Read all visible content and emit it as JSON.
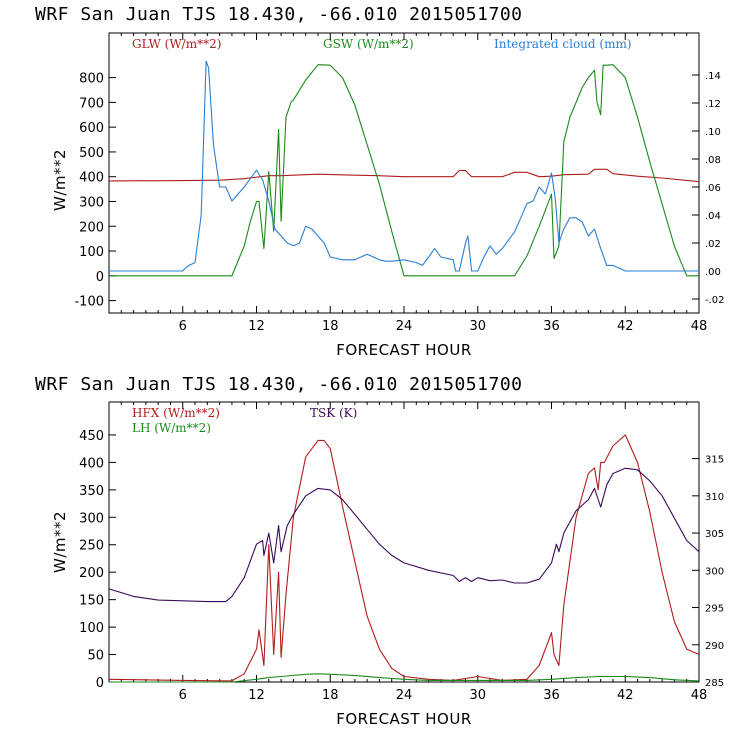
{
  "chart_data": [
    {
      "type": "line",
      "title": "WRF  San Juan TJS  18.430, -66.010  2015051700",
      "xlabel": "FORECAST HOUR",
      "ylabel": "W/m**2",
      "xlim": [
        0,
        48
      ],
      "ylim": [
        -150,
        980
      ],
      "y2lim": [
        -0.03,
        0.17
      ],
      "xticks": [
        6,
        12,
        18,
        24,
        30,
        36,
        42,
        48
      ],
      "yticks": [
        -100,
        0,
        100,
        200,
        300,
        400,
        500,
        600,
        700,
        800
      ],
      "y2ticks": [
        -0.02,
        0.0,
        0.02,
        0.04,
        0.06,
        0.08,
        0.1,
        0.12,
        0.14
      ],
      "y2ticklabels": [
        "-.02",
        ".00",
        ".02",
        ".04",
        ".06",
        ".08",
        ".10",
        ".12",
        ".14"
      ],
      "series": [
        {
          "name": "GLW (W/m**2)",
          "color": "#b11c1c",
          "axis": "left",
          "x": [
            0,
            5,
            9,
            11,
            12,
            13,
            14,
            17,
            20,
            22,
            24,
            26,
            28,
            28.5,
            29,
            29.5,
            30,
            32,
            33,
            34,
            35,
            36,
            37,
            39,
            39.5,
            40.5,
            41,
            43,
            45,
            47,
            48
          ],
          "y": [
            383,
            384,
            386,
            392,
            398,
            404,
            404,
            410,
            406,
            404,
            400,
            400,
            400,
            425,
            425,
            400,
            400,
            400,
            418,
            418,
            400,
            402,
            408,
            410,
            430,
            430,
            412,
            402,
            395,
            385,
            380
          ]
        },
        {
          "name": "GSW (W/m**2)",
          "color": "#1b8a1b",
          "axis": "left",
          "x": [
            0,
            9,
            10,
            11,
            11.5,
            12,
            12.2,
            12.6,
            13,
            13.4,
            13.8,
            14,
            14.4,
            14.8,
            15,
            16,
            17,
            18,
            19,
            20,
            21,
            22,
            23,
            24,
            26,
            28,
            30,
            32,
            33,
            34,
            35,
            36,
            36.2,
            36.6,
            37,
            37.5,
            38,
            38.5,
            39,
            39.5,
            39.7,
            40,
            40.2,
            40.5,
            41,
            42,
            43,
            44,
            45,
            46,
            47,
            48
          ],
          "y": [
            0,
            0,
            0,
            120,
            220,
            300,
            300,
            110,
            420,
            180,
            590,
            220,
            640,
            700,
            710,
            790,
            852,
            850,
            800,
            690,
            530,
            370,
            180,
            0,
            0,
            0,
            0,
            0,
            0,
            80,
            200,
            330,
            70,
            120,
            540,
            640,
            700,
            760,
            800,
            830,
            700,
            650,
            850,
            850,
            852,
            800,
            640,
            460,
            290,
            120,
            0,
            0
          ]
        },
        {
          "name": "Integrated cloud (mm)",
          "color": "#2a7fd4",
          "axis": "right",
          "x": [
            0,
            6,
            6.2,
            6.5,
            7,
            7.5,
            7.9,
            8.1,
            8.5,
            9,
            9.5,
            10,
            11,
            12,
            12.5,
            13,
            13.5,
            14,
            14.5,
            15,
            15.5,
            16,
            16.5,
            17,
            17.5,
            18,
            19,
            20,
            20.5,
            21,
            21.5,
            22,
            22.5,
            23,
            24,
            25,
            25.5,
            26,
            26.5,
            27,
            28,
            28.2,
            28.5,
            29,
            29.2,
            29.5,
            30,
            30.5,
            31,
            31.5,
            32,
            33,
            33.5,
            34,
            34.5,
            35,
            35.5,
            36,
            36.3,
            36.6,
            37,
            37.5,
            38,
            38.5,
            39,
            39.5,
            40,
            40.5,
            41,
            42,
            43,
            44,
            46,
            48
          ],
          "y": [
            0,
            0,
            0.002,
            0.004,
            0.006,
            0.04,
            0.15,
            0.145,
            0.09,
            0.06,
            0.06,
            0.05,
            0.06,
            0.072,
            0.065,
            0.05,
            0.03,
            0.025,
            0.02,
            0.018,
            0.02,
            0.032,
            0.03,
            0.025,
            0.02,
            0.01,
            0.008,
            0.008,
            0.01,
            0.012,
            0.01,
            0.008,
            0.007,
            0.007,
            0.008,
            0.006,
            0.004,
            0.01,
            0.016,
            0.01,
            0.008,
            0.0,
            0.0,
            0.02,
            0.025,
            0.0,
            0.0,
            0.01,
            0.018,
            0.012,
            0.016,
            0.028,
            0.038,
            0.048,
            0.05,
            0.06,
            0.055,
            0.07,
            0.052,
            0.02,
            0.03,
            0.038,
            0.038,
            0.035,
            0.025,
            0.03,
            0.016,
            0.004,
            0.004,
            0.0,
            0.0,
            0.0,
            0.0,
            0.0
          ]
        }
      ]
    },
    {
      "type": "line",
      "title": "WRF  San Juan TJS  18.430, -66.010  2015051700",
      "xlabel": "FORECAST HOUR",
      "ylabel": "W/m**2",
      "xlim": [
        0,
        48
      ],
      "ylim": [
        0,
        510
      ],
      "y2lim": [
        285,
        322.6
      ],
      "xticks": [
        6,
        12,
        18,
        24,
        30,
        36,
        42,
        48
      ],
      "yticks": [
        0,
        50,
        100,
        150,
        200,
        250,
        300,
        350,
        400,
        450
      ],
      "y2ticks": [
        285,
        290,
        295,
        300,
        305,
        310,
        315
      ],
      "series": [
        {
          "name": "HFX (W/m**2)",
          "color": "#b11c1c",
          "axis": "left",
          "x": [
            0,
            6,
            10,
            11,
            12,
            12.2,
            12.6,
            13,
            13.4,
            13.8,
            14,
            14.4,
            15,
            16,
            17,
            17.5,
            18,
            19,
            20,
            21,
            22,
            23,
            24,
            26,
            28,
            30,
            32,
            34,
            35,
            36,
            36.2,
            36.6,
            37,
            38,
            39,
            39.5,
            39.8,
            40,
            40.3,
            41,
            42,
            43,
            44,
            45,
            46,
            47,
            48
          ],
          "y": [
            5,
            3,
            2,
            15,
            60,
            95,
            30,
            250,
            50,
            200,
            45,
            160,
            300,
            410,
            440,
            440,
            425,
            320,
            220,
            120,
            60,
            25,
            10,
            5,
            3,
            10,
            3,
            5,
            30,
            90,
            50,
            30,
            140,
            300,
            380,
            390,
            350,
            400,
            400,
            430,
            450,
            400,
            310,
            200,
            110,
            60,
            50
          ]
        },
        {
          "name": "LH (W/m**2)",
          "color": "#1b8a1b",
          "axis": "left",
          "x": [
            0,
            10,
            12,
            13,
            14,
            16,
            17,
            18,
            20,
            22,
            24,
            26,
            28,
            30,
            32,
            34,
            36,
            38,
            40,
            42,
            44,
            46,
            48
          ],
          "y": [
            0,
            0,
            5,
            8,
            10,
            14,
            15,
            14,
            12,
            8,
            5,
            3,
            3,
            3,
            3,
            3,
            5,
            8,
            10,
            10,
            8,
            4,
            2
          ]
        },
        {
          "name": "TSK (K)",
          "color": "#3b0a5a",
          "axis": "right",
          "x": [
            0,
            2,
            4,
            6,
            8,
            9.5,
            10,
            11,
            12,
            12.5,
            12.6,
            13,
            13.4,
            13.8,
            14,
            14.5,
            15,
            16,
            17,
            18,
            19,
            20,
            21,
            22,
            23,
            24,
            26,
            28,
            28.5,
            29,
            29.5,
            30,
            31,
            32,
            33,
            34,
            35,
            36,
            36.4,
            36.6,
            37,
            38,
            39,
            39.5,
            40,
            40.5,
            41,
            42,
            43,
            44,
            45,
            46,
            47,
            48
          ],
          "y": [
            297.5,
            296.5,
            296,
            295.9,
            295.8,
            295.8,
            296.5,
            299,
            303.5,
            304,
            302,
            305,
            301,
            306,
            302.5,
            306,
            307.5,
            310,
            311,
            310.8,
            309.5,
            307.5,
            305.5,
            303.5,
            302,
            301,
            300,
            299.3,
            298.5,
            299,
            298.5,
            299,
            298.6,
            298.7,
            298.3,
            298.3,
            298.8,
            301,
            303.5,
            302.5,
            305,
            308,
            309.5,
            311,
            308.5,
            311.5,
            313,
            313.7,
            313.5,
            312,
            310,
            307,
            304,
            302.5
          ]
        }
      ]
    }
  ]
}
